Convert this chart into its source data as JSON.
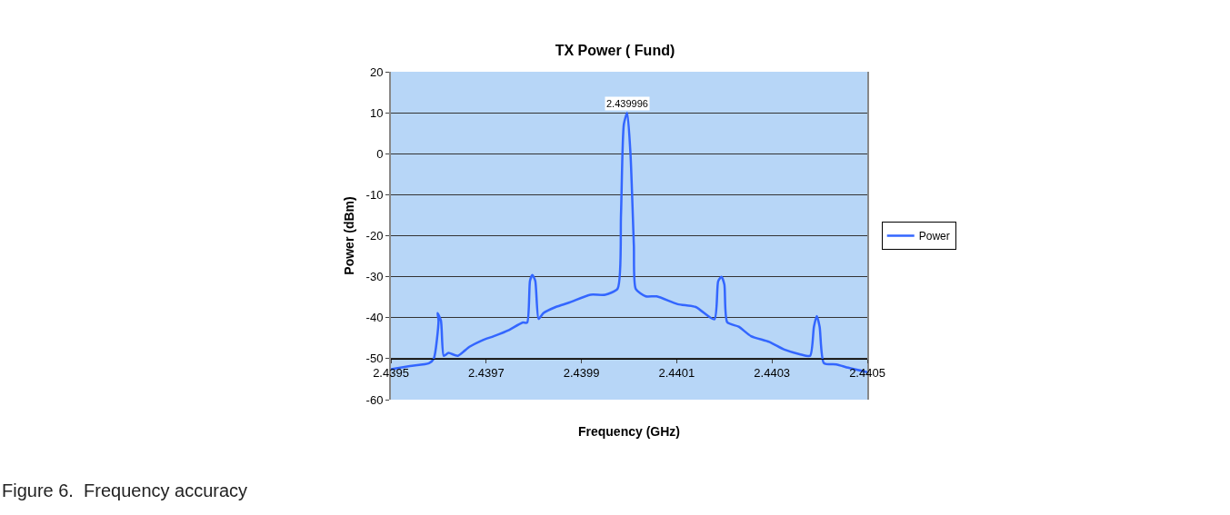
{
  "chart_data": {
    "type": "line",
    "title": "TX Power ( Fund)",
    "xlabel": "Frequency (GHz)",
    "ylabel": "Power (dBm)",
    "x": [
      2.4395,
      2.43954,
      2.43958,
      2.43959,
      2.4396,
      2.439598,
      2.439605,
      2.439611,
      2.439621,
      2.43964,
      2.439665,
      2.43969,
      2.439716,
      2.439748,
      2.439776,
      2.439786,
      2.439792,
      2.439797,
      2.439803,
      2.43981,
      2.43982,
      2.439846,
      2.439875,
      2.439919,
      2.43995,
      2.439976,
      2.439983,
      2.439989,
      2.439996,
      2.440003,
      2.44001,
      2.440014,
      2.440035,
      2.440058,
      2.440102,
      2.44014,
      2.440179,
      2.440187,
      2.440194,
      2.4402,
      2.440206,
      2.44023,
      2.440256,
      2.440294,
      2.440326,
      2.440358,
      2.44038,
      2.440388,
      2.440394,
      2.4404,
      2.440409,
      2.440435,
      2.44046,
      2.4405
    ],
    "series": [
      {
        "name": "Power",
        "color": "#3366ff",
        "values": [
          -52.6,
          -51.8,
          -51.1,
          -50,
          -40.7,
          -38.9,
          -40.7,
          -49.3,
          -48.6,
          -49.3,
          -47.1,
          -45.6,
          -44.5,
          -43,
          -41.2,
          -41.2,
          -31,
          -29.6,
          -31,
          -40.3,
          -38.9,
          -37.4,
          -36.3,
          -34.4,
          -34.4,
          -32.9,
          -14.9,
          7.2,
          10,
          -0.2,
          -22.3,
          -33,
          -34.8,
          -34.8,
          -36.7,
          -37.4,
          -40.4,
          -31.1,
          -30,
          -31.9,
          -41.1,
          -42.2,
          -44.5,
          -45.9,
          -47.8,
          -48.9,
          -49.3,
          -42.2,
          -39.6,
          -42.2,
          -51.1,
          -51.4,
          -52.2,
          -53.3
        ]
      }
    ],
    "xlim": [
      2.4395,
      2.4405
    ],
    "xticks": [
      2.4395,
      2.4397,
      2.4399,
      2.4401,
      2.4403,
      2.4405
    ],
    "ylim": [
      -60,
      20
    ],
    "yticks": [
      20,
      10,
      0,
      -10,
      -20,
      -30,
      -40,
      -50,
      -60
    ],
    "grid": "y",
    "legend": "right",
    "marker": "none",
    "line_style": "solid",
    "annotations": [
      {
        "text": "2.439996",
        "x": 2.439996,
        "y": 10
      },
      "Figure 6.  Frequency accuracy"
    ]
  }
}
